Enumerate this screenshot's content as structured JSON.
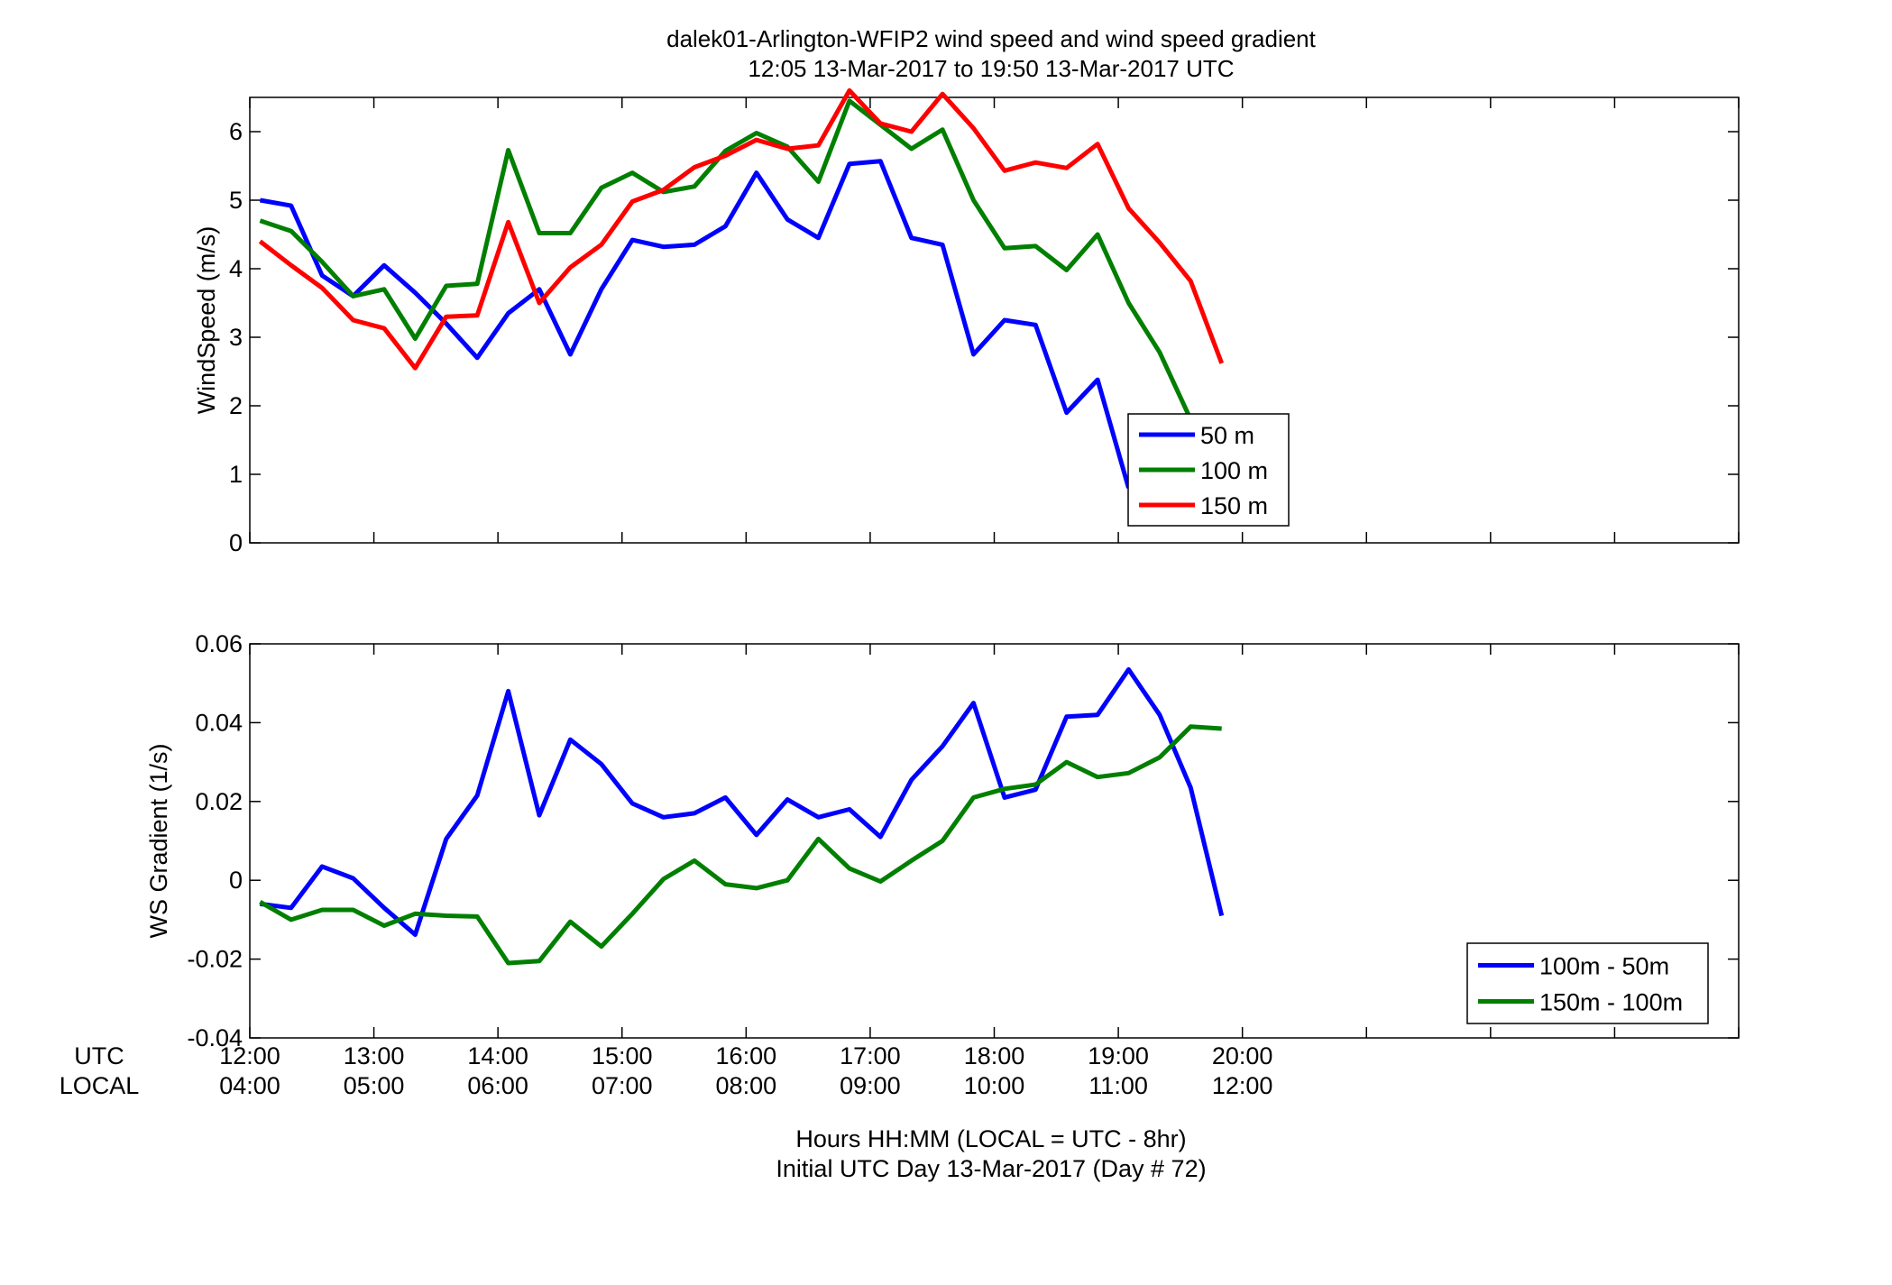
{
  "figure": {
    "title_line1": "dalek01-Arlington-WFIP2  wind speed and wind speed gradient",
    "title_line2": "12:05 13-Mar-2017 to 19:50 13-Mar-2017  UTC",
    "xlabel_line1": "Hours HH:MM  (LOCAL = UTC - 8hr)",
    "xlabel_line2": "Initial UTC Day 13-Mar-2017 (Day # 72)",
    "row_label_utc": "UTC",
    "row_label_local": "LOCAL",
    "utc_ticks": [
      "12:00",
      "13:00",
      "14:00",
      "15:00",
      "16:00",
      "17:00",
      "18:00",
      "19:00",
      "20:00"
    ],
    "local_ticks": [
      "04:00",
      "05:00",
      "06:00",
      "07:00",
      "08:00",
      "09:00",
      "10:00",
      "11:00",
      "12:00"
    ]
  },
  "chart_data": [
    {
      "type": "line",
      "ylabel": "WindSpeed (m/s)",
      "xlim": [
        12.0,
        24.0
      ],
      "ylim": [
        0,
        6.5
      ],
      "yticks": [
        "0",
        "1",
        "2",
        "3",
        "4",
        "5",
        "6"
      ],
      "x_hours": [
        12.083,
        12.333,
        12.583,
        12.833,
        13.083,
        13.333,
        13.583,
        13.833,
        14.083,
        14.333,
        14.583,
        14.833,
        15.083,
        15.333,
        15.583,
        15.833,
        16.083,
        16.333,
        16.583,
        16.833,
        17.083,
        17.333,
        17.583,
        17.833,
        18.083,
        18.333,
        18.583,
        18.833,
        19.083,
        19.333,
        19.583,
        19.833
      ],
      "legend_placement": "bottom-center",
      "series": [
        {
          "name": "50 m",
          "color": "#0000ff",
          "values": [
            5.0,
            4.92,
            3.9,
            3.6,
            4.05,
            3.65,
            3.2,
            2.7,
            3.35,
            3.7,
            2.75,
            3.7,
            4.42,
            4.32,
            4.35,
            4.62,
            5.4,
            4.72,
            4.45,
            5.53,
            5.57,
            4.45,
            4.35,
            2.75,
            3.25,
            3.18,
            1.9,
            2.38,
            0.8,
            null,
            null,
            null
          ]
        },
        {
          "name": "100 m",
          "color": "#007f00",
          "values": [
            4.7,
            4.55,
            4.1,
            3.6,
            3.7,
            2.98,
            3.75,
            3.78,
            5.73,
            4.52,
            4.52,
            5.18,
            5.4,
            5.12,
            5.2,
            5.72,
            5.98,
            5.78,
            5.27,
            6.45,
            6.1,
            5.75,
            6.03,
            5.0,
            4.3,
            4.33,
            3.98,
            4.5,
            3.5,
            2.78,
            1.8,
            null
          ]
        },
        {
          "name": "150 m",
          "color": "#ff0000",
          "values": [
            4.4,
            4.05,
            3.72,
            3.25,
            3.13,
            2.55,
            3.3,
            3.32,
            4.68,
            3.5,
            4.02,
            4.35,
            4.98,
            5.15,
            5.48,
            5.65,
            5.88,
            5.75,
            5.8,
            6.6,
            6.12,
            6.0,
            6.55,
            6.05,
            5.43,
            5.55,
            5.47,
            5.82,
            4.88,
            4.38,
            3.82,
            2.62
          ]
        }
      ]
    },
    {
      "type": "line",
      "ylabel": "WS Gradient (1/s)",
      "xlim": [
        12.0,
        24.0
      ],
      "ylim": [
        -0.04,
        0.06
      ],
      "yticks": [
        "-0.04",
        "-0.02",
        "0",
        "0.02",
        "0.04",
        "0.06"
      ],
      "x_hours": [
        12.083,
        12.333,
        12.583,
        12.833,
        13.083,
        13.333,
        13.583,
        13.833,
        14.083,
        14.333,
        14.583,
        14.833,
        15.083,
        15.333,
        15.583,
        15.833,
        16.083,
        16.333,
        16.583,
        16.833,
        17.083,
        17.333,
        17.583,
        17.833,
        18.083,
        18.333,
        18.583,
        18.833,
        19.083,
        19.333,
        19.583,
        19.833
      ],
      "legend_placement": "bottom-right",
      "series": [
        {
          "name": "100m - 50m",
          "color": "#0000ff",
          "values": [
            -0.006,
            -0.007,
            0.0035,
            0.0005,
            -0.007,
            -0.0138,
            0.0105,
            0.0215,
            0.048,
            0.0165,
            0.0357,
            0.0295,
            0.0195,
            0.016,
            0.017,
            0.021,
            0.0115,
            0.0205,
            0.016,
            0.018,
            0.011,
            0.0255,
            0.034,
            0.045,
            0.021,
            0.023,
            0.0415,
            0.042,
            0.0535,
            0.042,
            0.0235,
            -0.009
          ]
        },
        {
          "name": "150m - 100m",
          "color": "#007f00",
          "values": [
            -0.0055,
            -0.01,
            -0.0075,
            -0.0075,
            -0.0115,
            -0.0085,
            -0.009,
            -0.0092,
            -0.021,
            -0.0205,
            -0.0105,
            -0.0168,
            -0.0085,
            0.0003,
            0.005,
            -0.001,
            -0.002,
            0.0,
            0.0105,
            0.003,
            -0.0003,
            0.005,
            0.01,
            0.021,
            0.0232,
            0.0243,
            0.03,
            0.0262,
            0.0272,
            0.0312,
            0.039,
            0.0385
          ]
        }
      ]
    }
  ]
}
